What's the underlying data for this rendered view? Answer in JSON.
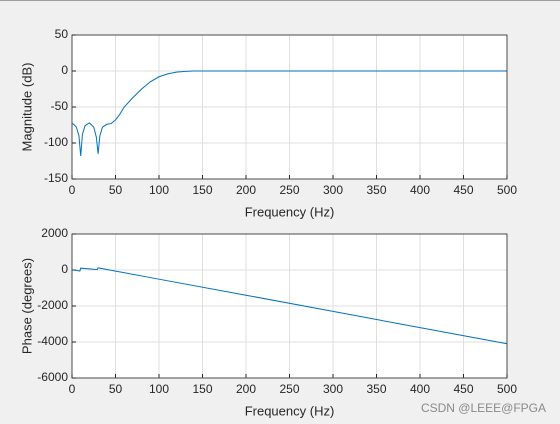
{
  "chart_data": [
    {
      "type": "line",
      "xlabel": "Frequency (Hz)",
      "ylabel": "Magnitude (dB)",
      "color": "#0072bd",
      "grid": true,
      "x": [
        0,
        2,
        5,
        8,
        10,
        12,
        15,
        20,
        25,
        28,
        30,
        32,
        35,
        40,
        45,
        50,
        55,
        60,
        70,
        80,
        90,
        100,
        110,
        120,
        130,
        140,
        150,
        200,
        300,
        400,
        500
      ],
      "values": [
        -73,
        -74,
        -78,
        -90,
        -118,
        -88,
        -76,
        -72,
        -78,
        -92,
        -115,
        -90,
        -78,
        -74,
        -73,
        -68,
        -60,
        -50,
        -37,
        -25,
        -15,
        -8,
        -4,
        -1.5,
        -0.5,
        0,
        0,
        0,
        0,
        0,
        0
      ],
      "xlim": [
        0,
        500
      ],
      "xticks": [
        0,
        50,
        100,
        150,
        200,
        250,
        300,
        350,
        400,
        450,
        500
      ],
      "ylim": [
        -150,
        50
      ],
      "yticks": [
        -150,
        -100,
        -50,
        0,
        50
      ]
    },
    {
      "type": "line",
      "xlabel": "Frequency (Hz)",
      "ylabel": "Phase (degrees)",
      "color": "#0072bd",
      "grid": true,
      "x": [
        0,
        5,
        9,
        10,
        20,
        29,
        30,
        50,
        100,
        200,
        300,
        400,
        500
      ],
      "values": [
        0,
        -20,
        -60,
        100,
        60,
        20,
        120,
        -60,
        -510,
        -1400,
        -2300,
        -3200,
        -4100
      ],
      "xlim": [
        0,
        500
      ],
      "xticks": [
        0,
        50,
        100,
        150,
        200,
        250,
        300,
        350,
        400,
        450,
        500
      ],
      "ylim": [
        -6000,
        2000
      ],
      "yticks": [
        -6000,
        -4000,
        -2000,
        0,
        2000
      ]
    }
  ],
  "watermark": "CSDN @LEEE@FPGA"
}
